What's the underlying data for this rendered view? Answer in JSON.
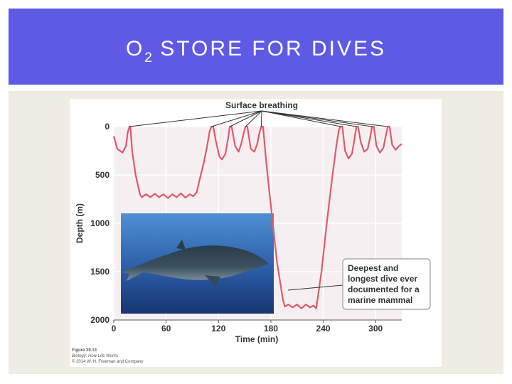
{
  "slide": {
    "title_main": "O",
    "title_sub": "2",
    "title_rest": " STORE FOR DIVES"
  },
  "chart_data": {
    "type": "line",
    "xlabel": "Time (min)",
    "ylabel": "Depth (m)",
    "xlim": [
      0,
      330
    ],
    "ylim": [
      0,
      2000
    ],
    "x_ticks": [
      "0",
      "60",
      "120",
      "180",
      "240",
      "300"
    ],
    "y_ticks": [
      "0",
      "500",
      "1000",
      "1500",
      "2000"
    ],
    "y_inverted": true,
    "grid": true,
    "line_color": "#e0596a",
    "series": [
      {
        "points": [
          [
            0,
            100
          ],
          [
            4,
            230
          ],
          [
            10,
            270
          ],
          [
            14,
            200
          ],
          [
            16,
            60
          ],
          [
            18,
            0
          ],
          [
            19,
            0
          ],
          [
            21,
            250
          ],
          [
            25,
            500
          ],
          [
            30,
            700
          ],
          [
            32,
            730
          ],
          [
            37,
            700
          ],
          [
            42,
            730
          ],
          [
            47,
            695
          ],
          [
            52,
            730
          ],
          [
            57,
            700
          ],
          [
            62,
            740
          ],
          [
            67,
            700
          ],
          [
            72,
            730
          ],
          [
            77,
            690
          ],
          [
            82,
            735
          ],
          [
            87,
            700
          ],
          [
            91,
            720
          ],
          [
            95,
            680
          ],
          [
            98,
            560
          ],
          [
            103,
            380
          ],
          [
            107,
            200
          ],
          [
            110,
            40
          ],
          [
            112,
            0
          ],
          [
            114,
            0
          ],
          [
            117,
            150
          ],
          [
            121,
            310
          ],
          [
            124,
            340
          ],
          [
            128,
            280
          ],
          [
            131,
            120
          ],
          [
            133,
            0
          ],
          [
            135,
            0
          ],
          [
            139,
            200
          ],
          [
            143,
            260
          ],
          [
            146,
            180
          ],
          [
            149,
            60
          ],
          [
            151,
            0
          ],
          [
            153,
            0
          ],
          [
            157,
            230
          ],
          [
            161,
            260
          ],
          [
            164,
            190
          ],
          [
            167,
            60
          ],
          [
            169,
            0
          ],
          [
            171,
            0
          ],
          [
            175,
            400
          ],
          [
            181,
            900
          ],
          [
            187,
            1400
          ],
          [
            194,
            1800
          ],
          [
            196,
            1860
          ],
          [
            200,
            1840
          ],
          [
            205,
            1870
          ],
          [
            210,
            1840
          ],
          [
            215,
            1880
          ],
          [
            220,
            1840
          ],
          [
            225,
            1870
          ],
          [
            229,
            1850
          ],
          [
            232,
            1880
          ],
          [
            238,
            1500
          ],
          [
            244,
            1000
          ],
          [
            250,
            550
          ],
          [
            255,
            200
          ],
          [
            258,
            30
          ],
          [
            260,
            0
          ],
          [
            262,
            0
          ],
          [
            265,
            250
          ],
          [
            269,
            330
          ],
          [
            273,
            280
          ],
          [
            276,
            120
          ],
          [
            278,
            0
          ],
          [
            280,
            0
          ],
          [
            283,
            160
          ],
          [
            287,
            260
          ],
          [
            291,
            230
          ],
          [
            294,
            100
          ],
          [
            296,
            0
          ],
          [
            298,
            0
          ],
          [
            301,
            200
          ],
          [
            305,
            270
          ],
          [
            309,
            220
          ],
          [
            312,
            80
          ],
          [
            314,
            0
          ],
          [
            316,
            0
          ],
          [
            319,
            190
          ],
          [
            323,
            240
          ],
          [
            327,
            200
          ],
          [
            330,
            180
          ]
        ]
      }
    ],
    "annotations": {
      "surface_breathing": "Surface breathing",
      "deepest_dive": [
        "Deepest and",
        "longest dive ever",
        "documented for a",
        "marine mammal"
      ]
    },
    "caption": [
      "Figure 39.13",
      "Biology: How Life Works",
      "© 2014 W. H. Freeman and Company"
    ]
  }
}
